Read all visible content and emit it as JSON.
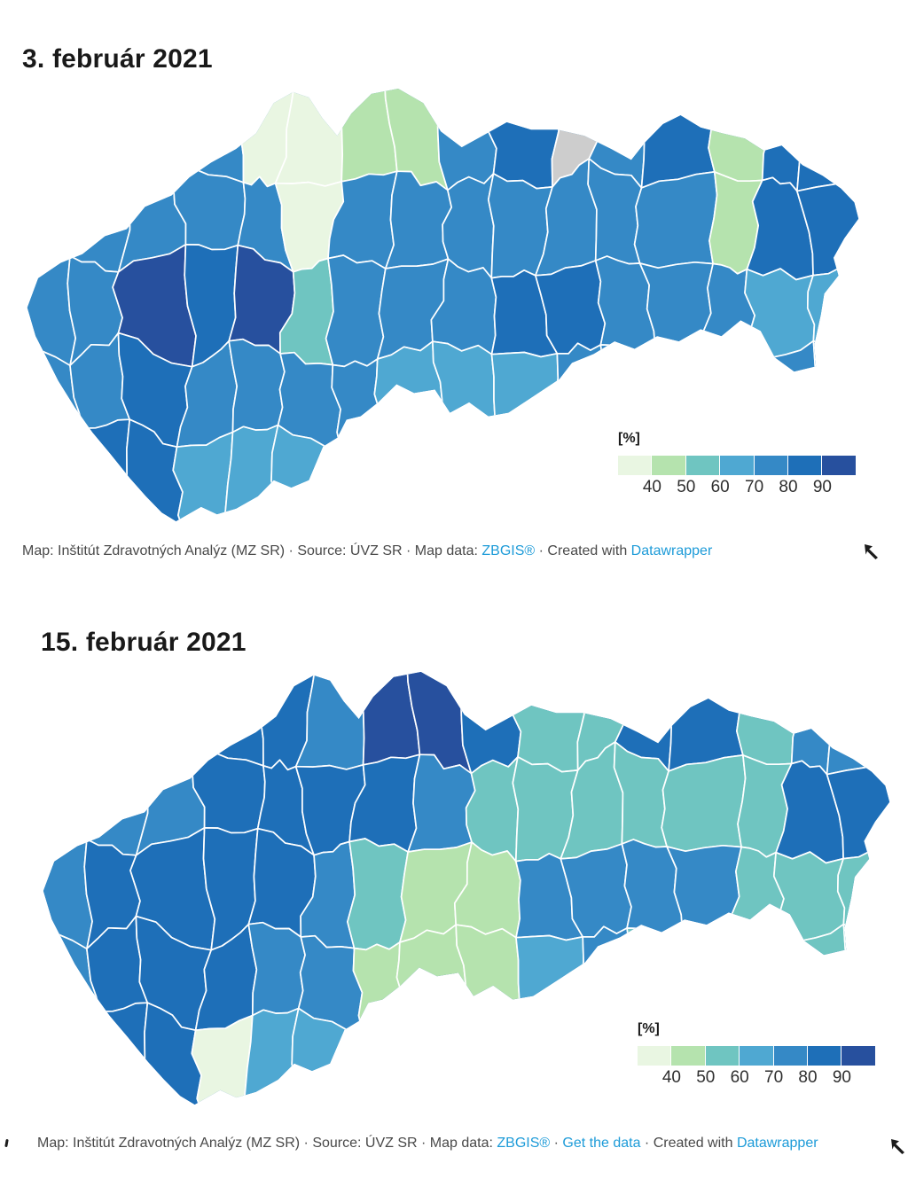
{
  "page": {
    "background": "#ffffff"
  },
  "legend": {
    "unit_label": "[%]",
    "ticks": [
      "40",
      "50",
      "60",
      "70",
      "80",
      "90"
    ]
  },
  "palette": {
    "colors": [
      "#e9f6e2",
      "#b5e3ae",
      "#6fc5c1",
      "#4fa8d2",
      "#3589c6",
      "#1e6fb8",
      "#27509e"
    ],
    "no_data": "#cdcdcd",
    "link_color": "#1d9bd8",
    "base_map1": "#3589c6",
    "base_map2": "#1e6fb8"
  },
  "map1": {
    "title": "3. február 2021",
    "attribution": {
      "segments": [
        {
          "text": "Map: Inštitút Zdravotných Analýz (MZ SR) · Source: ÚVZ SR · Map data: ",
          "link": false
        },
        {
          "text": "ZBGIS®",
          "link": true
        },
        {
          "text": " · Created with ",
          "link": false
        },
        {
          "text": "Datawrapper",
          "link": true
        }
      ]
    }
  },
  "map2": {
    "title": "15. február 2021",
    "attribution": {
      "segments": [
        {
          "text": "Map: Inštitút Zdravotných Analýz (MZ SR) · Source: ÚVZ SR · Map data: ",
          "link": false
        },
        {
          "text": "ZBGIS®",
          "link": true
        },
        {
          "text": " · ",
          "link": false
        },
        {
          "text": "Get the data",
          "link": true
        },
        {
          "text": " · Created with ",
          "link": false
        },
        {
          "text": "Datawrapper",
          "link": true
        }
      ]
    }
  },
  "chart_data": [
    {
      "type": "choropleth",
      "title": "3. február 2021",
      "unit": "[%]",
      "legend_breaks": [
        40,
        50,
        60,
        70,
        80,
        90
      ],
      "legend_note": "7 classes from pale green (<40%) to dark navy (>90%); grey = no data",
      "region": "Slovakia districts",
      "grid_note": "approximate district shade classes west-to-east (cols) and north-to-south (rows); values are palette indices 0-6, 7 = no-data grey",
      "grid": [
        [
          4,
          4,
          4,
          4,
          0,
          0,
          1,
          1,
          4,
          5,
          7,
          4,
          5,
          1,
          5,
          5
        ],
        [
          4,
          4,
          4,
          4,
          4,
          0,
          4,
          4,
          4,
          4,
          4,
          4,
          4,
          1,
          5,
          5
        ],
        [
          4,
          4,
          6,
          5,
          6,
          2,
          4,
          4,
          4,
          5,
          5,
          4,
          4,
          4,
          3,
          3
        ],
        [
          4,
          4,
          5,
          4,
          4,
          4,
          4,
          3,
          3,
          3,
          4,
          4,
          4,
          4,
          4,
          4
        ],
        [
          5,
          5,
          5,
          3,
          3,
          3,
          4,
          3,
          3,
          3,
          4,
          4,
          4,
          4,
          4,
          4
        ]
      ]
    },
    {
      "type": "choropleth",
      "title": "15. február 2021",
      "unit": "[%]",
      "legend_breaks": [
        40,
        50,
        60,
        70,
        80,
        90
      ],
      "legend_note": "7 classes from pale green (<40%) to dark navy (>90%)",
      "region": "Slovakia districts",
      "grid_note": "approximate district shade classes west-to-east (cols) and north-to-south (rows); values are palette indices 0-6",
      "grid": [
        [
          5,
          5,
          5,
          5,
          5,
          4,
          6,
          6,
          5,
          2,
          2,
          5,
          5,
          2,
          4,
          4
        ],
        [
          4,
          4,
          4,
          5,
          5,
          5,
          5,
          4,
          2,
          2,
          2,
          2,
          2,
          2,
          5,
          5
        ],
        [
          4,
          5,
          5,
          5,
          5,
          4,
          2,
          1,
          1,
          4,
          4,
          4,
          4,
          2,
          2,
          2
        ],
        [
          4,
          5,
          5,
          5,
          4,
          4,
          1,
          1,
          1,
          3,
          4,
          2,
          2,
          2,
          2,
          2
        ],
        [
          5,
          5,
          5,
          0,
          3,
          3,
          1,
          1,
          3,
          3,
          2,
          2,
          2,
          2,
          2,
          2
        ]
      ]
    }
  ]
}
